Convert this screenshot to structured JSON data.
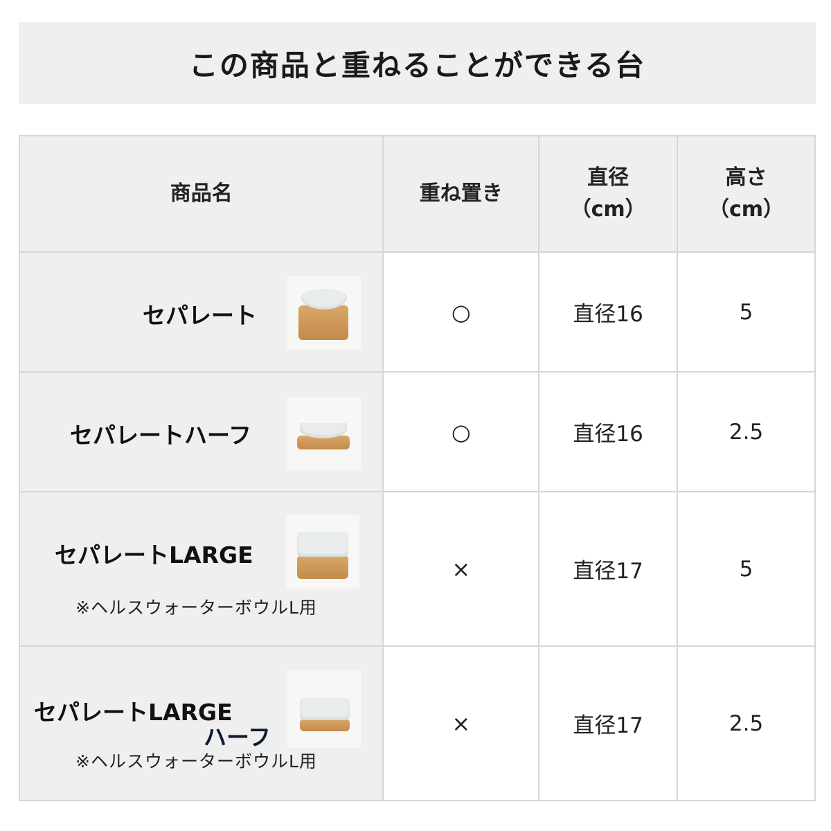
{
  "title": "この商品と重ねることができる台",
  "table": {
    "headers": [
      "商品名",
      "重ね置き",
      "直径\n（cm）",
      "高さ\n（cm）"
    ],
    "header_lines": {
      "diameter": [
        "直径",
        "（cm）"
      ],
      "height": [
        "高さ",
        "（cm）"
      ]
    },
    "rows": [
      {
        "name": "セパレート",
        "name2": "",
        "note": "",
        "stackable": "○",
        "diameter": "直径16",
        "height": "5"
      },
      {
        "name": "セパレートハーフ",
        "name2": "",
        "note": "",
        "stackable": "○",
        "diameter": "直径16",
        "height": "2.5"
      },
      {
        "name": "セパレートLARGE",
        "name2": "",
        "note": "※ヘルスウォーターボウルL用",
        "stackable": "×",
        "diameter": "直径17",
        "height": "5"
      },
      {
        "name": "セパレートLARGE",
        "name2": "ハーフ",
        "note": "※ヘルスウォーターボウルL用",
        "stackable": "×",
        "diameter": "直径17",
        "height": "2.5"
      }
    ]
  },
  "colors": {
    "header_bg": "#efefef",
    "border": "#d6d6d6",
    "wood": "#c8904f"
  }
}
